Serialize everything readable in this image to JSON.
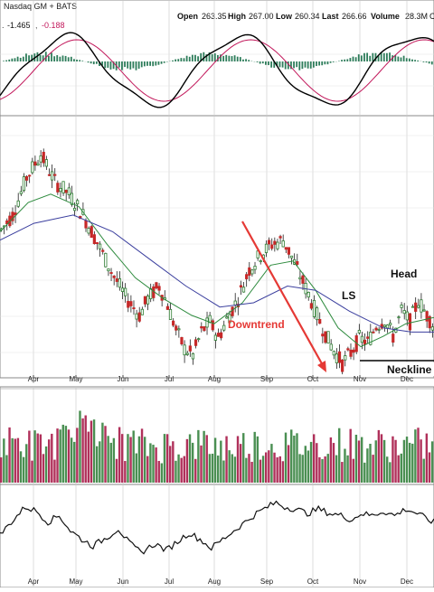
{
  "header": {
    "exchange_label": "Nasdaq GM + BATS",
    "open_label": "Open",
    "open_value": "263.35",
    "high_label": "High",
    "high_value": "267.00",
    "low_label": "Low",
    "low_value": "260.34",
    "last_label": "Last",
    "last_value": "266.66",
    "volume_label": "Volume",
    "volume_value": "28.3M",
    "volume_trailing": "C"
  },
  "macd_header": {
    "prefix": ". ",
    "macd_value": "-1.465",
    "signal_value": "-0.188"
  },
  "annotations": {
    "downtrend": "Downtrend",
    "left_shoulder": "LS",
    "head": "Head",
    "neckline": "Neckline"
  },
  "colors": {
    "up": "#2e7d32",
    "down": "#c62828",
    "macd_line": "#000000",
    "signal_line": "#c2185b",
    "histogram": "#2e7d5b",
    "sma_short": "#2e8b3e",
    "sma_long": "#3b3f9e",
    "downtrend_arrow": "#e53935",
    "downtrend_text": "#e53935",
    "neckline": "#000000",
    "vol_up": "#4a8f52",
    "vol_down": "#b0305a",
    "grid": "#c8c8c8"
  },
  "chart_data": {
    "type": "candlestick",
    "x_ticks": [
      "Apr",
      "May",
      "Jun",
      "Jul",
      "Aug",
      "Sep",
      "Oct",
      "Nov",
      "Dec"
    ],
    "grid": true,
    "panels": [
      "macd",
      "price",
      "volume",
      "oscillator"
    ],
    "price_path": [
      [
        0,
        255
      ],
      [
        4,
        262
      ],
      [
        9,
        280
      ],
      [
        14,
        291
      ],
      [
        19,
        278
      ],
      [
        24,
        272
      ],
      [
        29,
        262
      ],
      [
        34,
        249
      ],
      [
        39,
        235
      ],
      [
        44,
        223
      ],
      [
        49,
        214
      ],
      [
        52,
        222
      ],
      [
        56,
        228
      ],
      [
        59,
        219
      ],
      [
        62,
        207
      ],
      [
        65,
        198
      ],
      [
        68,
        195
      ],
      [
        71,
        206
      ],
      [
        74,
        211
      ],
      [
        77,
        203
      ],
      [
        80,
        212
      ],
      [
        84,
        222
      ],
      [
        88,
        236
      ],
      [
        92,
        243
      ],
      [
        96,
        248
      ],
      [
        100,
        250
      ],
      [
        103,
        242
      ],
      [
        106,
        233
      ],
      [
        109,
        224
      ],
      [
        112,
        214
      ],
      [
        115,
        205
      ],
      [
        118,
        197
      ],
      [
        121,
        191
      ],
      [
        124,
        196
      ],
      [
        127,
        203
      ],
      [
        130,
        201
      ],
      [
        133,
        209
      ],
      [
        136,
        212
      ],
      [
        139,
        204
      ],
      [
        142,
        216
      ],
      [
        145,
        211
      ],
      [
        148,
        221
      ],
      [
        151,
        214
      ],
      [
        154,
        208
      ]
    ],
    "sma_short_path": [
      [
        0,
        254
      ],
      [
        10,
        268
      ],
      [
        18,
        272
      ],
      [
        28,
        266
      ],
      [
        38,
        248
      ],
      [
        48,
        232
      ],
      [
        58,
        222
      ],
      [
        68,
        214
      ],
      [
        76,
        210
      ],
      [
        86,
        220
      ],
      [
        96,
        238
      ],
      [
        104,
        240
      ],
      [
        112,
        226
      ],
      [
        120,
        208
      ],
      [
        128,
        199
      ],
      [
        136,
        204
      ],
      [
        144,
        210
      ],
      [
        154,
        213
      ]
    ],
    "sma_long_path": [
      [
        0,
        250
      ],
      [
        12,
        258
      ],
      [
        26,
        262
      ],
      [
        40,
        254
      ],
      [
        54,
        240
      ],
      [
        66,
        228
      ],
      [
        78,
        218
      ],
      [
        90,
        220
      ],
      [
        102,
        228
      ],
      [
        112,
        226
      ],
      [
        124,
        216
      ],
      [
        136,
        208
      ],
      [
        146,
        206
      ],
      [
        154,
        206
      ]
    ],
    "volume_path": [
      [
        0,
        22
      ],
      [
        6,
        25
      ],
      [
        12,
        21
      ],
      [
        18,
        24
      ],
      [
        24,
        28
      ],
      [
        30,
        36
      ],
      [
        36,
        30
      ],
      [
        42,
        24
      ],
      [
        48,
        22
      ],
      [
        54,
        20
      ],
      [
        60,
        22
      ],
      [
        66,
        21
      ],
      [
        72,
        23
      ],
      [
        78,
        20
      ],
      [
        84,
        21
      ],
      [
        90,
        23
      ],
      [
        96,
        22
      ],
      [
        102,
        21
      ],
      [
        108,
        22
      ],
      [
        114,
        24
      ],
      [
        120,
        23
      ],
      [
        126,
        22
      ],
      [
        132,
        21
      ],
      [
        138,
        22
      ],
      [
        144,
        21
      ],
      [
        150,
        22
      ],
      [
        154,
        21
      ]
    ],
    "oscillator_path": [
      [
        0,
        40
      ],
      [
        4,
        52
      ],
      [
        9,
        66
      ],
      [
        13,
        62
      ],
      [
        17,
        52
      ],
      [
        21,
        58
      ],
      [
        25,
        44
      ],
      [
        29,
        36
      ],
      [
        33,
        30
      ],
      [
        38,
        38
      ],
      [
        42,
        46
      ],
      [
        46,
        32
      ],
      [
        50,
        24
      ],
      [
        55,
        32
      ],
      [
        59,
        26
      ],
      [
        63,
        34
      ],
      [
        67,
        42
      ],
      [
        71,
        36
      ],
      [
        75,
        28
      ],
      [
        79,
        36
      ],
      [
        83,
        44
      ],
      [
        87,
        52
      ],
      [
        91,
        60
      ],
      [
        95,
        66
      ],
      [
        98,
        70
      ],
      [
        101,
        66
      ],
      [
        105,
        64
      ],
      [
        109,
        60
      ],
      [
        113,
        64
      ],
      [
        117,
        60
      ],
      [
        121,
        58
      ],
      [
        125,
        54
      ],
      [
        128,
        60
      ],
      [
        132,
        58
      ],
      [
        136,
        62
      ],
      [
        140,
        58
      ],
      [
        144,
        64
      ],
      [
        148,
        60
      ],
      [
        152,
        54
      ],
      [
        154,
        52
      ]
    ]
  }
}
